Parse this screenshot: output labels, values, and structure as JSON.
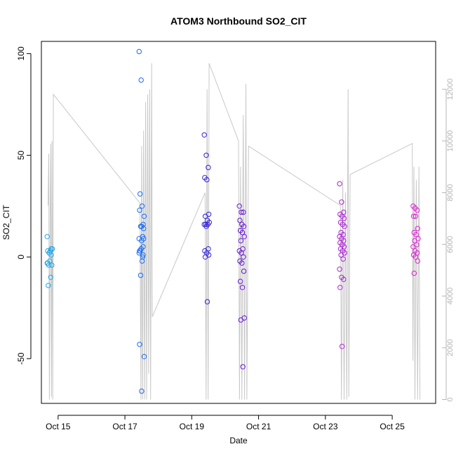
{
  "chart_data": {
    "type": "scatter",
    "title": "ATOM3 Northbound SO2_CIT",
    "xlabel": "Date",
    "ylabel": "SO2_CIT",
    "x_ticks": [
      "Oct 15",
      "Oct 17",
      "Oct 19",
      "Oct 21",
      "Oct 23",
      "Oct 25"
    ],
    "x_tick_days": [
      15,
      17,
      19,
      21,
      23,
      25
    ],
    "xlim": [
      14.5,
      26.3
    ],
    "ylim": [
      -72,
      106
    ],
    "y_ticks": [
      -50,
      0,
      50,
      100
    ],
    "y2lim": [
      -150,
      13850
    ],
    "y2_ticks": [
      0,
      2000,
      4000,
      6000,
      8000,
      10000,
      12000
    ],
    "grid": false,
    "points": [
      {
        "flight": 1,
        "color": "#1ea7e8",
        "x": 14.75,
        "y": [
          -3,
          2,
          4,
          3,
          -2,
          -4,
          -14,
          3,
          4,
          -4,
          -10,
          10,
          2,
          1,
          -3
        ]
      },
      {
        "flight": 2,
        "color": "#1c6cf0",
        "x": 17.5,
        "y": [
          101,
          87,
          16,
          23,
          15,
          9,
          3,
          -2,
          -49,
          -9,
          0,
          2,
          4,
          5,
          3,
          8,
          14,
          31,
          25,
          20,
          15,
          10,
          9,
          4,
          1,
          -43,
          -66
        ]
      },
      {
        "flight": 3,
        "color": "#3020d8",
        "x": 19.45,
        "y": [
          60,
          50,
          44,
          39,
          38,
          21,
          20,
          18,
          17,
          16,
          16,
          16,
          15,
          4,
          3,
          2,
          1,
          0,
          -22
        ]
      },
      {
        "flight": 4,
        "color": "#6a18d8",
        "x": 20.5,
        "y": [
          25,
          22,
          22,
          18,
          16,
          15,
          13,
          12,
          10,
          8,
          4,
          3,
          2,
          0,
          -2,
          -3,
          -7,
          -12,
          -15,
          -30,
          -31,
          -54
        ]
      },
      {
        "flight": 5,
        "color": "#b020d8",
        "x": 23.5,
        "y": [
          36,
          27,
          22,
          21,
          20,
          19,
          17,
          16,
          15,
          12,
          11,
          10,
          9,
          8,
          7,
          6,
          5,
          4,
          3,
          2,
          1,
          -1,
          -6,
          -10,
          -11,
          -15,
          -44
        ]
      },
      {
        "flight": 6,
        "color": "#e020d8",
        "x": 25.7,
        "y": [
          25,
          24,
          23,
          20,
          20,
          14,
          12,
          11,
          9,
          8,
          6,
          5,
          3,
          2,
          1,
          0,
          -2,
          -8
        ]
      }
    ],
    "altitude_series": {
      "name": "",
      "color": "#c8c8c8",
      "path": [
        [
          14.7,
          7500
        ],
        [
          14.72,
          9500
        ],
        [
          14.74,
          0
        ],
        [
          14.76,
          7000
        ],
        [
          14.78,
          9900
        ],
        [
          14.8,
          100
        ],
        [
          14.82,
          10000
        ],
        [
          14.84,
          0
        ],
        [
          14.86,
          11800
        ],
        [
          17.45,
          7600
        ],
        [
          17.48,
          0
        ],
        [
          17.5,
          9800
        ],
        [
          17.53,
          0
        ],
        [
          17.56,
          10400
        ],
        [
          17.59,
          0
        ],
        [
          17.62,
          11500
        ],
        [
          17.65,
          0
        ],
        [
          17.68,
          11800
        ],
        [
          17.71,
          1000
        ],
        [
          17.74,
          12000
        ],
        [
          17.77,
          0
        ],
        [
          17.8,
          13000
        ],
        [
          17.82,
          3200
        ],
        [
          19.4,
          8000
        ],
        [
          19.43,
          0
        ],
        [
          19.46,
          12000
        ],
        [
          19.49,
          0
        ],
        [
          19.52,
          13000
        ],
        [
          20.4,
          10000
        ],
        [
          20.43,
          0
        ],
        [
          20.46,
          9000
        ],
        [
          20.5,
          0
        ],
        [
          20.54,
          11000
        ],
        [
          20.58,
          0
        ],
        [
          20.62,
          12200
        ],
        [
          20.65,
          0
        ],
        [
          20.7,
          9800
        ],
        [
          23.45,
          7500
        ],
        [
          23.48,
          0
        ],
        [
          23.52,
          8500
        ],
        [
          23.56,
          0
        ],
        [
          23.6,
          8000
        ],
        [
          23.64,
          0
        ],
        [
          23.68,
          12000
        ],
        [
          23.7,
          100
        ],
        [
          23.74,
          8700
        ],
        [
          25.6,
          9900
        ],
        [
          25.62,
          1500
        ],
        [
          25.65,
          9000
        ],
        [
          25.68,
          0
        ],
        [
          25.72,
          8500
        ],
        [
          25.76,
          0
        ],
        [
          25.8,
          9000
        ],
        [
          25.83,
          0
        ]
      ]
    }
  }
}
